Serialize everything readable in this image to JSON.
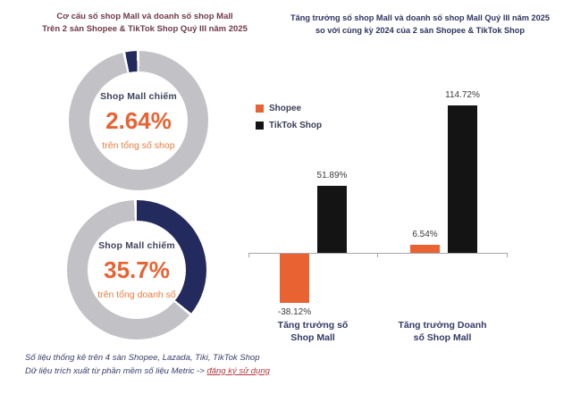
{
  "left_panel": {
    "title_line1": "Cơ cấu số shop Mall và doanh số shop Mall",
    "title_line2": "Trên 2 sàn Shopee & TikTok Shop Quý III năm 2025",
    "footnote_line1": "Số liệu thống kê trên 4 sàn Shopee, Lazada, Tiki, TikTok Shop",
    "footnote_line2": "Dữ liệu trích xuất từ phần mềm số liệu Metric -> ",
    "footnote_link": "đăng ký sử dụng"
  },
  "right_panel": {
    "title_line1": "Tăng trưởng số shop Mall và doanh số shop Mall Quý III năm 2025",
    "title_line2": "so với cùng kỳ 2024 của 2 sàn Shopee & TikTok Shop"
  },
  "colors": {
    "orange": "#e86232",
    "black": "#141414",
    "navy_segment": "#232a5e",
    "gray_ring": "#c2c2c6",
    "left_title": "#6e3a48",
    "right_title": "#2e355f",
    "link_red": "#b8393f"
  },
  "chart_data": [
    {
      "type": "pie",
      "subtype": "donut",
      "title": "Cơ cấu số shop Mall trên 2 sàn Shopee & TikTok Shop Quý III năm 2025",
      "center": {
        "label": "Shop Mall chiếm",
        "value": "2.64%",
        "sub": "trên tổng số shop"
      },
      "slices": [
        {
          "label": "Shop Mall",
          "value": 2.64,
          "color": "#232a5e"
        },
        {
          "label": "Còn lại",
          "value": 97.36,
          "color": "#c2c2c6"
        }
      ]
    },
    {
      "type": "pie",
      "subtype": "donut",
      "title": "Cơ cấu doanh số shop Mall trên 2 sàn Shopee & TikTok Shop Quý III năm 2025",
      "center": {
        "label": "Shop Mall chiếm",
        "value": "35.7%",
        "sub": "trên tổng doanh số"
      },
      "slices": [
        {
          "label": "Shop Mall",
          "value": 35.7,
          "color": "#232a5e"
        },
        {
          "label": "Còn lại",
          "value": 64.3,
          "color": "#c2c2c6"
        }
      ]
    },
    {
      "type": "bar",
      "title": "Tăng trưởng số shop Mall và doanh số shop Mall Quý III năm 2025 so với cùng kỳ 2024 của 2 sàn Shopee & TikTok Shop",
      "categories": [
        "Tăng trưởng số Shop Mall",
        "Tăng trưởng Doanh số Shop Mall"
      ],
      "categories_lines": [
        [
          "Tăng trưởng số",
          "Shop Mall"
        ],
        [
          "Tăng trưởng Doanh",
          "số Shop Mall"
        ]
      ],
      "series": [
        {
          "name": "Shopee",
          "color": "#e86232",
          "values": [
            -38.12,
            6.54
          ],
          "labels": [
            "-38.12%",
            "6.54%"
          ]
        },
        {
          "name": "TikTok Shop",
          "color": "#141414",
          "values": [
            51.89,
            114.72
          ],
          "labels": [
            "51.89%",
            "114.72%"
          ]
        }
      ],
      "ylim": [
        -50,
        130
      ],
      "grid": false,
      "legend_position": "top-left"
    }
  ]
}
